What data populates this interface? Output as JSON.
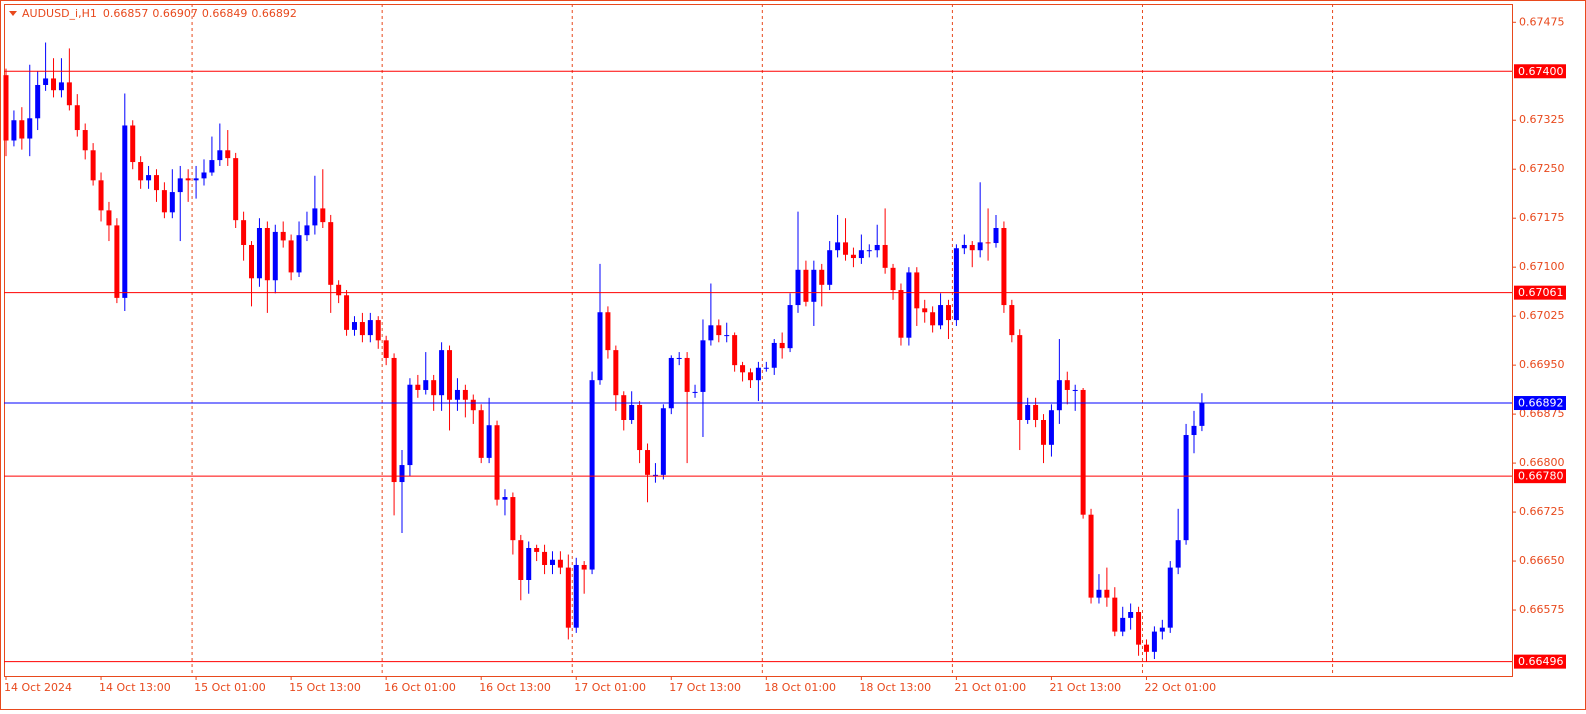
{
  "chart_data": {
    "type": "candlestick",
    "header": {
      "symbol": "AUDUSD_i,H1",
      "values": [
        "0.66857",
        "0.66907",
        "0.66849",
        "0.66892"
      ]
    },
    "up_color": "#0000ff",
    "down_color": "#ff0000",
    "ylim": [
      0.66474,
      0.67503
    ],
    "yticks": [
      0.67475,
      0.67325,
      {
        "value": 0.6725,
        "label": "0.67250"
      },
      0.67175,
      {
        "value": 0.671,
        "label": "0.67100"
      },
      0.67025,
      {
        "value": 0.6695,
        "label": "0.66950"
      },
      0.66875,
      {
        "value": 0.668,
        "label": "0.66800"
      },
      0.66725,
      {
        "value": 0.6665,
        "label": "0.66650"
      },
      0.66575
    ],
    "hlines": [
      {
        "value": 0.674,
        "label": "0.67400",
        "color": "#ff0000"
      },
      {
        "value": 0.67061,
        "label": "0.67061",
        "color": "#ff0000"
      },
      {
        "value": 0.66892,
        "label": "0.66892",
        "color": "#0000ff"
      },
      {
        "value": 0.6678,
        "label": "0.66780",
        "color": "#ff0000"
      },
      {
        "value": 0.66496,
        "label": "0.66496",
        "color": "#ff0000"
      }
    ],
    "categories": [
      "14 Oct 2024",
      null,
      null,
      null,
      null,
      null,
      null,
      null,
      null,
      null,
      null,
      null,
      "14 Oct 13:00",
      null,
      null,
      null,
      null,
      null,
      null,
      null,
      null,
      null,
      null,
      null,
      "15 Oct 01:00",
      null,
      null,
      null,
      null,
      null,
      null,
      null,
      null,
      null,
      null,
      null,
      "15 Oct 13:00",
      null,
      null,
      null,
      null,
      null,
      null,
      null,
      null,
      null,
      null,
      null,
      "16 Oct 01:00",
      null,
      null,
      null,
      null,
      null,
      null,
      null,
      null,
      null,
      null,
      null,
      "16 Oct 13:00",
      null,
      null,
      null,
      null,
      null,
      null,
      null,
      null,
      null,
      null,
      null,
      "17 Oct 01:00",
      null,
      null,
      null,
      null,
      null,
      null,
      null,
      null,
      null,
      null,
      null,
      "17 Oct 13:00",
      null,
      null,
      null,
      null,
      null,
      null,
      null,
      null,
      null,
      null,
      null,
      "18 Oct 01:00",
      null,
      null,
      null,
      null,
      null,
      null,
      null,
      null,
      null,
      null,
      null,
      "18 Oct 13:00",
      null,
      null,
      null,
      null,
      null,
      null,
      null,
      null,
      null,
      null,
      null,
      "21 Oct 01:00",
      null,
      null,
      null,
      null,
      null,
      null,
      null,
      null,
      null,
      null,
      null,
      "21 Oct 13:00",
      null,
      null,
      null,
      null,
      null,
      null,
      null,
      null,
      null,
      null,
      null,
      "22 Oct 01:00",
      null,
      null,
      null,
      null,
      null,
      null,
      null
    ],
    "ohlc": [
      [
        0.67394,
        0.67404,
        0.6727,
        0.67294
      ],
      [
        0.67294,
        0.6734,
        0.67285,
        0.67325
      ],
      [
        0.67325,
        0.67345,
        0.6728,
        0.67297
      ],
      [
        0.67297,
        0.6741,
        0.6727,
        0.67328
      ],
      [
        0.67328,
        0.674,
        0.6731,
        0.67379
      ],
      [
        0.67379,
        0.67444,
        0.6737,
        0.67389
      ],
      [
        0.67389,
        0.6742,
        0.6736,
        0.67371
      ],
      [
        0.67371,
        0.6742,
        0.6736,
        0.67383
      ],
      [
        0.67383,
        0.67435,
        0.6734,
        0.67348
      ],
      [
        0.67348,
        0.67365,
        0.673,
        0.6731
      ],
      [
        0.6731,
        0.6732,
        0.67265,
        0.67279
      ],
      [
        0.67279,
        0.6729,
        0.67225,
        0.67233
      ],
      [
        0.67233,
        0.67245,
        0.6717,
        0.67187
      ],
      [
        0.67187,
        0.672,
        0.6714,
        0.67164
      ],
      [
        0.67164,
        0.67175,
        0.67045,
        0.67053
      ],
      [
        0.67053,
        0.67366,
        0.67033,
        0.67317
      ],
      [
        0.67317,
        0.67325,
        0.6725,
        0.67261
      ],
      [
        0.67261,
        0.6727,
        0.6722,
        0.67233
      ],
      [
        0.67233,
        0.67255,
        0.6722,
        0.67241
      ],
      [
        0.67241,
        0.6725,
        0.672,
        0.67218
      ],
      [
        0.67218,
        0.6723,
        0.67175,
        0.67184
      ],
      [
        0.67184,
        0.6725,
        0.67175,
        0.67215
      ],
      [
        0.67215,
        0.67255,
        0.6714,
        0.67236
      ],
      [
        0.67236,
        0.6725,
        0.672,
        0.67233
      ],
      [
        0.67233,
        0.67255,
        0.67205,
        0.67236
      ],
      [
        0.67236,
        0.67265,
        0.67225,
        0.67245
      ],
      [
        0.67245,
        0.673,
        0.6724,
        0.67264
      ],
      [
        0.67264,
        0.6732,
        0.67255,
        0.67279
      ],
      [
        0.67279,
        0.6731,
        0.67255,
        0.67267
      ],
      [
        0.67267,
        0.67275,
        0.6716,
        0.67172
      ],
      [
        0.67172,
        0.67185,
        0.6711,
        0.67134
      ],
      [
        0.67134,
        0.6714,
        0.6704,
        0.67083
      ],
      [
        0.67083,
        0.67175,
        0.6707,
        0.6716
      ],
      [
        0.6716,
        0.6717,
        0.6703,
        0.6708
      ],
      [
        0.6708,
        0.67165,
        0.6706,
        0.67154
      ],
      [
        0.67154,
        0.6717,
        0.6713,
        0.67141
      ],
      [
        0.67141,
        0.6715,
        0.6708,
        0.67092
      ],
      [
        0.67092,
        0.6717,
        0.67085,
        0.67149
      ],
      [
        0.67149,
        0.67185,
        0.6714,
        0.67164
      ],
      [
        0.67164,
        0.6724,
        0.6715,
        0.6719
      ],
      [
        0.6719,
        0.6725,
        0.6716,
        0.67169
      ],
      [
        0.67169,
        0.6718,
        0.6703,
        0.67073
      ],
      [
        0.67073,
        0.6708,
        0.67045,
        0.67057
      ],
      [
        0.67057,
        0.67065,
        0.66995,
        0.67004
      ],
      [
        0.67004,
        0.67025,
        0.66995,
        0.67016
      ],
      [
        0.67016,
        0.6703,
        0.66985,
        0.66996
      ],
      [
        0.66996,
        0.6703,
        0.66985,
        0.67019
      ],
      [
        0.67019,
        0.67025,
        0.66975,
        0.66988
      ],
      [
        0.66988,
        0.66995,
        0.6695,
        0.66961
      ],
      [
        0.66961,
        0.66968,
        0.6672,
        0.66771
      ],
      [
        0.66771,
        0.6682,
        0.66693,
        0.66797
      ],
      [
        0.66797,
        0.6693,
        0.6678,
        0.6692
      ],
      [
        0.6692,
        0.66935,
        0.669,
        0.66912
      ],
      [
        0.66912,
        0.6697,
        0.66905,
        0.66927
      ],
      [
        0.66927,
        0.66935,
        0.6688,
        0.66904
      ],
      [
        0.66904,
        0.66985,
        0.6688,
        0.66973
      ],
      [
        0.66973,
        0.6698,
        0.6685,
        0.66897
      ],
      [
        0.66897,
        0.6693,
        0.6688,
        0.66912
      ],
      [
        0.66912,
        0.6692,
        0.6687,
        0.66897
      ],
      [
        0.66897,
        0.66905,
        0.6686,
        0.66881
      ],
      [
        0.66881,
        0.6689,
        0.668,
        0.66808
      ],
      [
        0.66808,
        0.669,
        0.668,
        0.66858
      ],
      [
        0.66858,
        0.66865,
        0.66735,
        0.66744
      ],
      [
        0.66744,
        0.6676,
        0.6672,
        0.66748
      ],
      [
        0.66748,
        0.66755,
        0.6666,
        0.66682
      ],
      [
        0.66682,
        0.6669,
        0.6659,
        0.66621
      ],
      [
        0.66621,
        0.6668,
        0.666,
        0.6667
      ],
      [
        0.6667,
        0.66675,
        0.6665,
        0.66664
      ],
      [
        0.66664,
        0.66675,
        0.6663,
        0.66644
      ],
      [
        0.66644,
        0.66665,
        0.6663,
        0.66652
      ],
      [
        0.66652,
        0.66665,
        0.6663,
        0.6664
      ],
      [
        0.6664,
        0.6666,
        0.6653,
        0.66548
      ],
      [
        0.66548,
        0.66655,
        0.6654,
        0.66644
      ],
      [
        0.66644,
        0.6665,
        0.666,
        0.66637
      ],
      [
        0.66637,
        0.6694,
        0.6663,
        0.66927
      ],
      [
        0.66927,
        0.67105,
        0.6692,
        0.67031
      ],
      [
        0.67031,
        0.6704,
        0.6696,
        0.66973
      ],
      [
        0.66973,
        0.6698,
        0.6688,
        0.66904
      ],
      [
        0.66904,
        0.6691,
        0.6685,
        0.66866
      ],
      [
        0.66866,
        0.6691,
        0.6686,
        0.66889
      ],
      [
        0.66889,
        0.66895,
        0.668,
        0.6682
      ],
      [
        0.6682,
        0.6683,
        0.6674,
        0.66782
      ],
      [
        0.66782,
        0.668,
        0.6677,
        0.66782
      ],
      [
        0.66782,
        0.6689,
        0.66775,
        0.66884
      ],
      [
        0.66884,
        0.66965,
        0.66875,
        0.66961
      ],
      [
        0.66961,
        0.6697,
        0.6695,
        0.66961
      ],
      [
        0.66961,
        0.6697,
        0.668,
        0.66909
      ],
      [
        0.66909,
        0.6692,
        0.669,
        0.66909
      ],
      [
        0.66909,
        0.6702,
        0.6684,
        0.66988
      ],
      [
        0.66988,
        0.67075,
        0.6698,
        0.67011
      ],
      [
        0.67011,
        0.6702,
        0.66985,
        0.66996
      ],
      [
        0.66996,
        0.67015,
        0.66985,
        0.66996
      ],
      [
        0.66996,
        0.67,
        0.6694,
        0.6695
      ],
      [
        0.6695,
        0.66955,
        0.66925,
        0.66939
      ],
      [
        0.66939,
        0.66945,
        0.66915,
        0.66927
      ],
      [
        0.66927,
        0.66955,
        0.66895,
        0.66946
      ],
      [
        0.66946,
        0.66955,
        0.6694,
        0.66946
      ],
      [
        0.66946,
        0.6699,
        0.66935,
        0.66984
      ],
      [
        0.66984,
        0.67,
        0.6696,
        0.66976
      ],
      [
        0.66976,
        0.6706,
        0.6697,
        0.67042
      ],
      [
        0.67042,
        0.67185,
        0.6703,
        0.67096
      ],
      [
        0.67096,
        0.6711,
        0.6704,
        0.67047
      ],
      [
        0.67047,
        0.6711,
        0.6701,
        0.67096
      ],
      [
        0.67096,
        0.67105,
        0.6704,
        0.67073
      ],
      [
        0.67073,
        0.6714,
        0.67065,
        0.67126
      ],
      [
        0.67126,
        0.6718,
        0.67115,
        0.67138
      ],
      [
        0.67138,
        0.67175,
        0.6711,
        0.67119
      ],
      [
        0.67119,
        0.6713,
        0.671,
        0.67114
      ],
      [
        0.67114,
        0.6715,
        0.67105,
        0.67126
      ],
      [
        0.67126,
        0.67135,
        0.67115,
        0.67126
      ],
      [
        0.67126,
        0.67165,
        0.67115,
        0.67134
      ],
      [
        0.67134,
        0.6719,
        0.6709,
        0.67099
      ],
      [
        0.67099,
        0.67105,
        0.6705,
        0.67065
      ],
      [
        0.67065,
        0.67075,
        0.6698,
        0.66992
      ],
      [
        0.66992,
        0.671,
        0.6698,
        0.67092
      ],
      [
        0.67092,
        0.671,
        0.6701,
        0.67037
      ],
      [
        0.67037,
        0.6705,
        0.67015,
        0.67031
      ],
      [
        0.67031,
        0.6704,
        0.67,
        0.67011
      ],
      [
        0.67011,
        0.6706,
        0.67005,
        0.67042
      ],
      [
        0.67042,
        0.6705,
        0.6699,
        0.67019
      ],
      [
        0.67019,
        0.67135,
        0.6701,
        0.67129
      ],
      [
        0.67129,
        0.6715,
        0.6712,
        0.67134
      ],
      [
        0.67134,
        0.6714,
        0.671,
        0.67126
      ],
      [
        0.67126,
        0.6723,
        0.67115,
        0.67138
      ],
      [
        0.67138,
        0.6719,
        0.6711,
        0.67137
      ],
      [
        0.67137,
        0.6718,
        0.6713,
        0.6716
      ],
      [
        0.6716,
        0.6717,
        0.6703,
        0.67042
      ],
      [
        0.67042,
        0.6705,
        0.66985,
        0.66996
      ],
      [
        0.66996,
        0.67005,
        0.6682,
        0.66866
      ],
      [
        0.66866,
        0.669,
        0.6686,
        0.66889
      ],
      [
        0.66889,
        0.669,
        0.66855,
        0.66866
      ],
      [
        0.66866,
        0.66875,
        0.668,
        0.66828
      ],
      [
        0.66828,
        0.6689,
        0.6681,
        0.66881
      ],
      [
        0.66881,
        0.6699,
        0.6686,
        0.66927
      ],
      [
        0.66927,
        0.6694,
        0.6689,
        0.66912
      ],
      [
        0.66912,
        0.6692,
        0.6688,
        0.66912
      ],
      [
        0.66912,
        0.66915,
        0.66715,
        0.66721
      ],
      [
        0.66721,
        0.6673,
        0.66585,
        0.66594
      ],
      [
        0.66594,
        0.6663,
        0.66585,
        0.66606
      ],
      [
        0.66606,
        0.6664,
        0.6658,
        0.66594
      ],
      [
        0.66594,
        0.6661,
        0.66535,
        0.66542
      ],
      [
        0.66542,
        0.6658,
        0.66535,
        0.66563
      ],
      [
        0.66563,
        0.66585,
        0.66545,
        0.66572
      ],
      [
        0.66572,
        0.6658,
        0.66505,
        0.66522
      ],
      [
        0.66522,
        0.6653,
        0.66496,
        0.66511
      ],
      [
        0.66511,
        0.6655,
        0.665,
        0.66542
      ],
      [
        0.66542,
        0.6656,
        0.6653,
        0.66548
      ],
      [
        0.66548,
        0.6665,
        0.6654,
        0.6664
      ],
      [
        0.6664,
        0.6673,
        0.6663,
        0.66682
      ],
      [
        0.66682,
        0.6686,
        0.66675,
        0.66843
      ],
      [
        0.66843,
        0.6688,
        0.66815,
        0.66857
      ],
      [
        0.66857,
        0.66907,
        0.66849,
        0.66892
      ]
    ]
  }
}
